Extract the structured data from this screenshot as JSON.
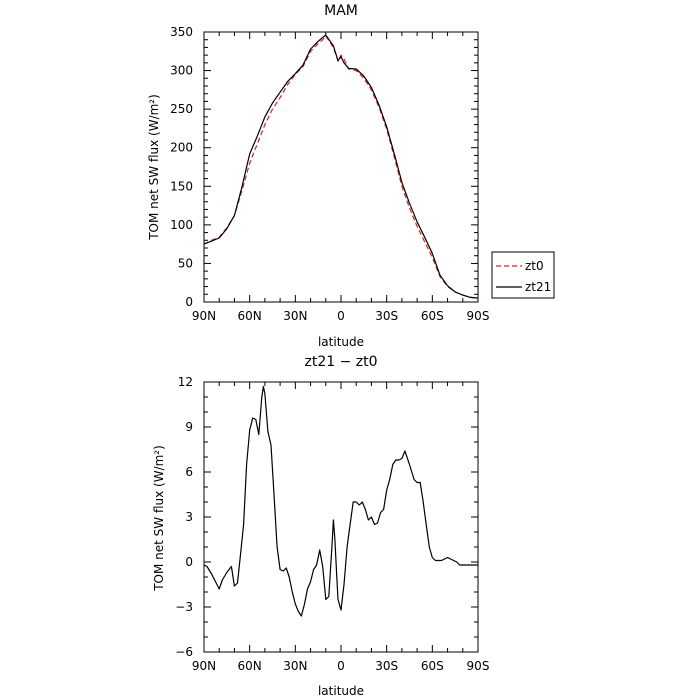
{
  "chart_data": [
    {
      "type": "line",
      "title": "MAM",
      "xlabel": "latitude",
      "ylabel": "TOM net SW flux (W/m²)",
      "xlim": [
        90,
        -90
      ],
      "ylim": [
        0,
        350
      ],
      "xticks": [
        90,
        60,
        30,
        0,
        -30,
        -60,
        -90
      ],
      "xtick_labels": [
        "90N",
        "60N",
        "30N",
        "0",
        "30S",
        "60S",
        "90S"
      ],
      "yticks": [
        0,
        50,
        100,
        150,
        200,
        250,
        300,
        350
      ],
      "ytick_labels": [
        "0",
        "50",
        "100",
        "150",
        "200",
        "250",
        "300",
        "350"
      ],
      "legend": "right-outside",
      "series": [
        {
          "name": "zt0",
          "color": "#d62020",
          "dash": "dashed",
          "x": [
            90,
            85,
            80,
            75,
            70,
            65,
            60,
            55,
            50,
            45,
            40,
            35,
            30,
            25,
            20,
            15,
            12,
            10,
            5,
            2,
            0,
            -2,
            -5,
            -10,
            -15,
            -20,
            -25,
            -30,
            -35,
            -40,
            -45,
            -50,
            -55,
            -60,
            -65,
            -70,
            -75,
            -80,
            -85,
            -90
          ],
          "y": [
            75,
            80,
            84,
            96,
            112,
            145,
            180,
            205,
            230,
            250,
            265,
            282,
            295,
            305,
            325,
            335,
            340,
            345,
            330,
            312,
            320,
            315,
            302,
            300,
            290,
            275,
            252,
            224,
            188,
            150,
            122,
            98,
            78,
            58,
            33,
            20,
            13,
            9,
            6,
            5
          ]
        },
        {
          "name": "zt21",
          "color": "#000000",
          "dash": "solid",
          "x": [
            90,
            85,
            80,
            75,
            70,
            65,
            60,
            55,
            50,
            45,
            40,
            35,
            30,
            25,
            20,
            15,
            12,
            10,
            5,
            2,
            0,
            -2,
            -5,
            -10,
            -15,
            -20,
            -25,
            -30,
            -35,
            -40,
            -45,
            -50,
            -55,
            -60,
            -65,
            -70,
            -75,
            -80,
            -85,
            -90
          ],
          "y": [
            75,
            79,
            83,
            95,
            112,
            150,
            192,
            215,
            240,
            258,
            272,
            286,
            296,
            307,
            328,
            338,
            343,
            346,
            332,
            313,
            318,
            310,
            303,
            302,
            293,
            278,
            255,
            227,
            192,
            155,
            128,
            104,
            84,
            63,
            35,
            21,
            13,
            9,
            6,
            5
          ]
        }
      ]
    },
    {
      "type": "line",
      "title": "zt21 − zt0",
      "xlabel": "latitude",
      "ylabel": "TOM net SW flux (W/m²)",
      "xlim": [
        90,
        -90
      ],
      "ylim": [
        -6,
        12
      ],
      "xticks": [
        90,
        60,
        30,
        0,
        -30,
        -60,
        -90
      ],
      "xtick_labels": [
        "90N",
        "60N",
        "30N",
        "0",
        "30S",
        "60S",
        "90S"
      ],
      "yticks": [
        -6,
        -3,
        0,
        3,
        6,
        9,
        12
      ],
      "ytick_labels": [
        "−6",
        "−3",
        "0",
        "3",
        "6",
        "9",
        "12"
      ],
      "series": [
        {
          "name": "",
          "color": "#000000",
          "dash": "solid",
          "x": [
            90,
            88,
            85,
            82,
            80,
            78,
            75,
            72,
            70,
            68,
            66,
            64,
            62,
            60,
            58,
            56,
            54,
            52,
            51,
            50,
            48,
            46,
            44,
            42,
            40,
            38,
            36,
            34,
            32,
            30,
            28,
            26,
            24,
            22,
            20,
            18,
            16,
            14,
            12,
            10,
            8,
            6,
            5,
            4,
            3,
            2,
            0,
            -2,
            -4,
            -6,
            -8,
            -10,
            -12,
            -14,
            -16,
            -18,
            -20,
            -22,
            -24,
            -26,
            -28,
            -30,
            -32,
            -34,
            -36,
            -38,
            -40,
            -42,
            -45,
            -48,
            -50,
            -52,
            -54,
            -56,
            -58,
            -60,
            -62,
            -64,
            -66,
            -68,
            -70,
            -72,
            -74,
            -76,
            -78,
            -80,
            -82,
            -84,
            -86,
            -88,
            -90
          ],
          "y": [
            -0.2,
            -0.3,
            -0.8,
            -1.4,
            -1.8,
            -1.2,
            -0.7,
            -0.3,
            -1.6,
            -1.4,
            0.5,
            2.5,
            6.5,
            8.8,
            9.6,
            9.5,
            8.5,
            11.0,
            11.7,
            11.2,
            8.7,
            7.8,
            4.5,
            1.0,
            -0.5,
            -0.6,
            -0.4,
            -1.0,
            -2.0,
            -2.8,
            -3.3,
            -3.6,
            -2.8,
            -1.8,
            -1.3,
            -0.5,
            -0.2,
            0.8,
            -0.3,
            -2.5,
            -2.3,
            1.0,
            2.8,
            1.5,
            -0.5,
            -2.5,
            -3.2,
            -1.5,
            1.0,
            2.5,
            4.0,
            4.0,
            3.8,
            4.0,
            3.5,
            2.8,
            3.0,
            2.5,
            2.6,
            3.3,
            3.5,
            4.8,
            5.5,
            6.5,
            6.8,
            6.8,
            6.9,
            7.4,
            6.5,
            5.5,
            5.3,
            5.3,
            4.0,
            2.5,
            1.0,
            0.3,
            0.1,
            0.1,
            0.1,
            0.2,
            0.3,
            0.2,
            0.1,
            0.0,
            -0.2,
            -0.2,
            -0.2,
            -0.2,
            -0.2,
            -0.2,
            -0.2
          ]
        }
      ]
    }
  ]
}
